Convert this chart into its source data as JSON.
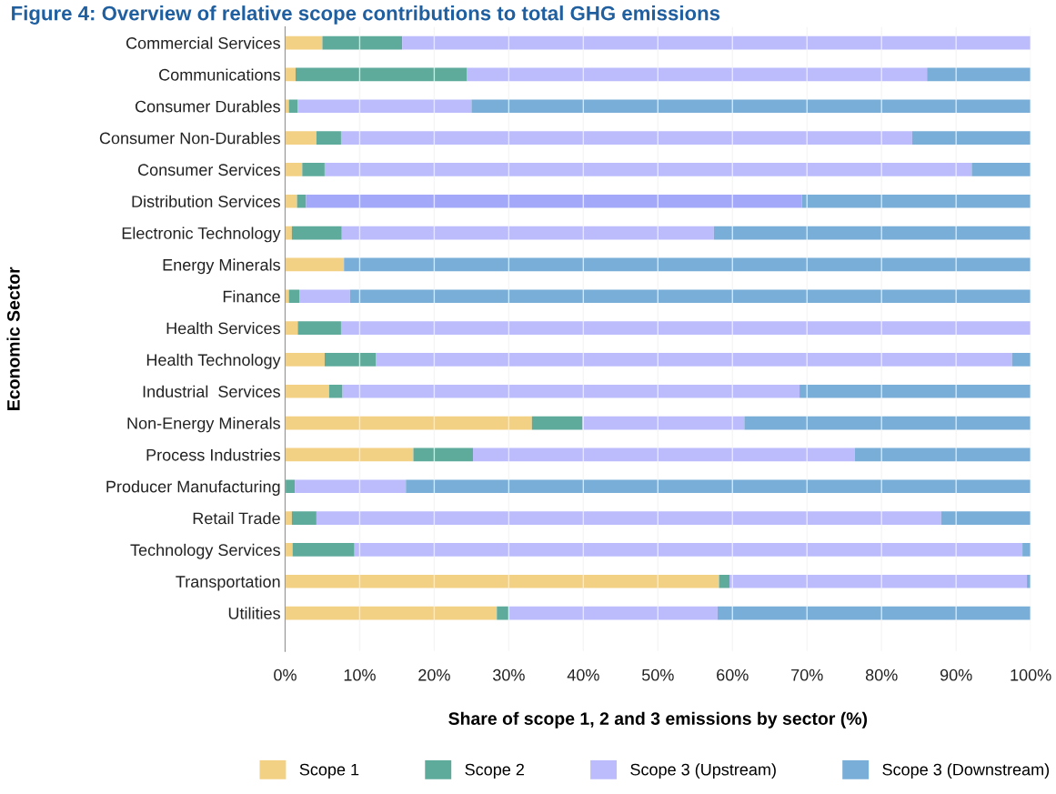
{
  "chart_data": {
    "type": "bar",
    "orientation": "horizontal",
    "stacked": true,
    "title": "Figure 4: Overview of relative scope contributions to total GHG emissions",
    "xlabel": "Share of scope 1, 2 and 3 emissions by sector (%)",
    "ylabel": "Economic Sector",
    "categories": [
      "Commercial Services",
      "Communications",
      "Consumer Durables",
      "Consumer Non-Durables",
      "Consumer Services",
      "Distribution Services",
      "Electronic Technology",
      "Energy Minerals",
      "Finance",
      "Health Services",
      "Health Technology",
      "Industrial  Services",
      "Non-Energy Minerals",
      "Process Industries",
      "Producer Manufacturing",
      "Retail Trade",
      "Technology Services",
      "Transportation",
      "Utilities"
    ],
    "series": [
      {
        "name": "Scope 1",
        "color": "#f2d084",
        "values": [
          5.0,
          1.4,
          0.5,
          4.2,
          2.3,
          1.6,
          0.9,
          7.9,
          0.5,
          1.7,
          5.3,
          5.9,
          33.1,
          17.2,
          0,
          0.9,
          1.0,
          58.2,
          28.4
        ]
      },
      {
        "name": "Scope 2",
        "color": "#5eab9b",
        "values": [
          10.7,
          23.0,
          1.2,
          3.3,
          3.0,
          1.2,
          6.7,
          0,
          1.4,
          5.8,
          6.9,
          1.8,
          6.8,
          8.0,
          1.3,
          3.3,
          8.3,
          1.4,
          1.6
        ]
      },
      {
        "name": "Scope 3 (Upstream)",
        "color": "#bcbcfc",
        "colors": [
          "#bcbcfc",
          "#bcbcfc",
          "#bcbcfc",
          "#bcbcfc",
          "#bcbcfc",
          "#a3a9f8",
          "#bcbcfc",
          "#bcbcfc",
          "#bcbcfc",
          "#bcbcfc",
          "#bcbcfc",
          "#bcbcfc",
          "#bcbcfc",
          "#bcbcfc",
          "#bcbcfc",
          "#bcbcfc",
          "#bcbcfc",
          "#bcbcfc",
          "#bcbcfc"
        ],
        "values": [
          84.3,
          61.7,
          23.3,
          76.6,
          86.8,
          66.5,
          49.9,
          0,
          6.8,
          92.5,
          85.3,
          61.3,
          21.7,
          51.2,
          14.9,
          83.8,
          89.6,
          39.9,
          28.0
        ]
      },
      {
        "name": "Scope 3 (Downstream)",
        "color": "#78aed8",
        "values": [
          0,
          13.9,
          75.0,
          15.9,
          7.9,
          30.7,
          42.5,
          92.1,
          91.3,
          0,
          2.5,
          31.0,
          38.4,
          23.6,
          83.8,
          12.0,
          1.1,
          0.5,
          42.0
        ]
      }
    ],
    "xlim": [
      0,
      100
    ],
    "xticks": [
      {
        "value": 0,
        "label": "0%"
      },
      {
        "value": 10,
        "label": "10%"
      },
      {
        "value": 20,
        "label": "20%"
      },
      {
        "value": 30,
        "label": "30%"
      },
      {
        "value": 40,
        "label": "40%"
      },
      {
        "value": 50,
        "label": "50%"
      },
      {
        "value": 60,
        "label": "60%"
      },
      {
        "value": 70,
        "label": "70%"
      },
      {
        "value": 80,
        "label": "80%"
      },
      {
        "value": 90,
        "label": "90%"
      },
      {
        "value": 100,
        "label": "100%"
      }
    ],
    "grid": "x",
    "legend": "bottom"
  }
}
